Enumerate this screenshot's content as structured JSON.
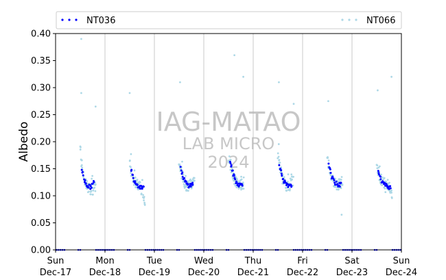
{
  "chart_data": {
    "type": "scatter",
    "ylabel": "Albedo",
    "ylim": [
      0,
      0.4
    ],
    "y_ticks": [
      "0.00",
      "0.05",
      "0.10",
      "0.15",
      "0.20",
      "0.25",
      "0.30",
      "0.35",
      "0.40"
    ],
    "xlim": [
      "2023-12-17",
      "2023-12-24"
    ],
    "x_ticks": [
      {
        "day": "Sun",
        "date": "Dec-17"
      },
      {
        "day": "Mon",
        "date": "Dec-18"
      },
      {
        "day": "Tue",
        "date": "Dec-19"
      },
      {
        "day": "Wed",
        "date": "Dec-20"
      },
      {
        "day": "Thu",
        "date": "Dec-21"
      },
      {
        "day": "Fri",
        "date": "Dec-22"
      },
      {
        "day": "Sat",
        "date": "Dec-23"
      },
      {
        "day": "Sun",
        "date": "Dec-24"
      }
    ],
    "grid": "vertical",
    "legend_placement": "top, above plot",
    "watermark": [
      "IAG-MATAO",
      "LAB MICRO",
      "2024"
    ],
    "series": [
      {
        "name": "NT036",
        "color": "#0000ff",
        "style": "dots",
        "daily_profile": {
          "times": [
            0.53,
            0.55,
            0.58,
            0.62,
            0.66,
            0.7,
            0.74,
            0.78
          ],
          "values": [
            [
              0.15,
              0.14,
              0.13,
              0.122,
              0.118,
              0.116,
              0.12,
              0.125
            ],
            [
              0.15,
              0.14,
              0.131,
              0.125,
              0.12,
              0.117,
              0.116,
              0.118
            ],
            [
              0.153,
              0.145,
              0.135,
              0.127,
              0.121,
              0.119,
              0.12,
              0.122
            ],
            [
              0.165,
              0.158,
              0.145,
              0.133,
              0.125,
              0.121,
              0.12,
              0.122
            ],
            [
              0.16,
              0.15,
              0.138,
              0.128,
              0.121,
              0.118,
              0.117,
              0.119
            ],
            [
              0.16,
              0.15,
              0.138,
              0.129,
              0.124,
              0.121,
              0.12,
              0.121
            ],
            [
              0.15,
              0.14,
              0.131,
              0.125,
              0.121,
              0.118,
              0.117,
              0.116
            ]
          ]
        },
        "night_values": 0.0
      },
      {
        "name": "NT066",
        "color": "#add8e6",
        "style": "dots",
        "daily_profile": {
          "times": [
            0.5,
            0.52,
            0.55,
            0.58,
            0.62,
            0.66,
            0.7,
            0.74,
            0.78,
            0.81
          ],
          "values": [
            [
              0.19,
              0.165,
              0.145,
              0.13,
              0.122,
              0.116,
              0.112,
              0.11,
              0.114,
              0.118
            ],
            [
              0.16,
              0.15,
              0.14,
              0.131,
              0.124,
              0.12,
              0.117,
              0.112,
              0.104,
              0.09
            ],
            [
              0.16,
              0.152,
              0.142,
              0.132,
              0.123,
              0.119,
              0.119,
              0.121,
              0.127,
              0.135
            ],
            [
              0.17,
              0.165,
              0.155,
              0.142,
              0.131,
              0.124,
              0.121,
              0.12,
              0.122,
              0.125
            ],
            [
              0.17,
              0.162,
              0.15,
              0.137,
              0.127,
              0.12,
              0.117,
              0.118,
              0.122,
              0.13
            ],
            [
              0.17,
              0.16,
              0.148,
              0.137,
              0.128,
              0.123,
              0.121,
              0.121,
              0.124,
              0.13
            ],
            [
              0.16,
              0.15,
              0.14,
              0.132,
              0.127,
              0.124,
              0.121,
              0.119,
              0.112,
              0.095
            ]
          ]
        },
        "outliers": [
          {
            "day": 0,
            "t": 0.52,
            "y": 0.39
          },
          {
            "day": 0,
            "t": 0.52,
            "y": 0.29
          },
          {
            "day": 0,
            "t": 0.81,
            "y": 0.265
          },
          {
            "day": 1,
            "t": 0.5,
            "y": 0.29
          },
          {
            "day": 2,
            "t": 0.52,
            "y": 0.31
          },
          {
            "day": 3,
            "t": 0.62,
            "y": 0.36
          },
          {
            "day": 3,
            "t": 0.8,
            "y": 0.32
          },
          {
            "day": 4,
            "t": 0.52,
            "y": 0.31
          },
          {
            "day": 4,
            "t": 0.82,
            "y": 0.27
          },
          {
            "day": 5,
            "t": 0.52,
            "y": 0.275
          },
          {
            "day": 5,
            "t": 0.79,
            "y": 0.065
          },
          {
            "day": 6,
            "t": 0.52,
            "y": 0.295
          },
          {
            "day": 6,
            "t": 0.8,
            "y": 0.32
          }
        ],
        "night_values": 0.0
      }
    ]
  }
}
